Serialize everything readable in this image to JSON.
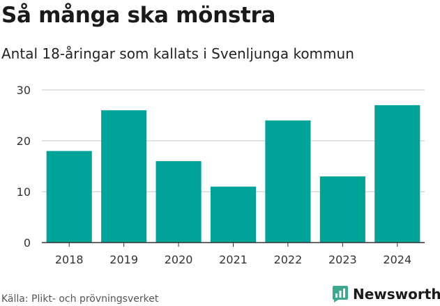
{
  "header": {
    "title": "Så många ska mönstra",
    "subtitle": "Antal 18-åringar som kallats i Svenljunga kommun"
  },
  "footer": {
    "source": "Källa: Plikt- och prövningsverket",
    "brand": "Newsworthy"
  },
  "colors": {
    "bar": "#00a398",
    "brand": "#3aa98f",
    "grid": "#d9d9d9",
    "axis": "#333333",
    "text": "#1a1a1a"
  },
  "chart_data": {
    "type": "bar",
    "title": "",
    "xlabel": "",
    "ylabel": "",
    "categories": [
      "2018",
      "2019",
      "2020",
      "2021",
      "2022",
      "2023",
      "2024"
    ],
    "values": [
      18,
      26,
      16,
      11,
      24,
      13,
      27
    ],
    "ylim": [
      0,
      30
    ],
    "yticks": [
      0,
      10,
      20,
      30
    ],
    "grid": true,
    "legend": "none"
  }
}
